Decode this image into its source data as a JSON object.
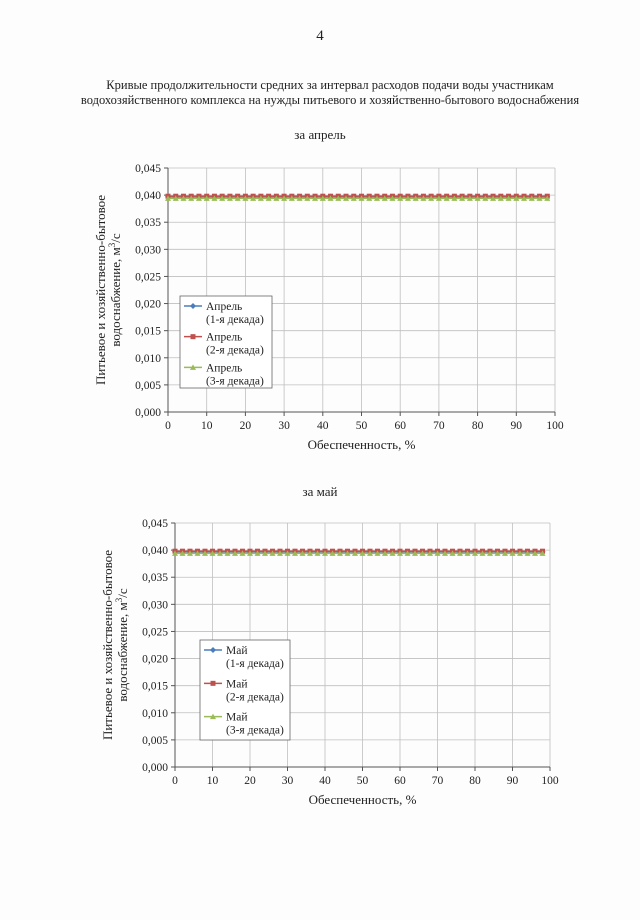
{
  "page_number": "4",
  "title_lines": [
    "Кривые продолжительности средних за интервал расходов подачи воды участникам",
    "водохозяйственного комплекса на нужды питьевого и хозяйственно-бытового водоснабжения"
  ],
  "chart_data": [
    {
      "type": "line",
      "title": "за апрель",
      "xlabel": "Обеспеченность, %",
      "ylabel_line1": "Питьевое и хозяйственно-бытовое",
      "ylabel_line2": "водоснабжение, м",
      "ylabel_sup": "3",
      "ylabel_suffix": "/с",
      "xlim": [
        0,
        100
      ],
      "ylim": [
        0,
        0.045
      ],
      "x_ticks": [
        "0",
        "10",
        "20",
        "30",
        "40",
        "50",
        "60",
        "70",
        "80",
        "90",
        "100"
      ],
      "y_ticks": [
        "0,000",
        "0,005",
        "0,010",
        "0,015",
        "0,020",
        "0,025",
        "0,030",
        "0,035",
        "0,040",
        "0,045"
      ],
      "grid": true,
      "legend_position": "lower-left",
      "x": [
        0,
        2,
        4,
        6,
        8,
        10,
        12,
        14,
        16,
        18,
        20,
        22,
        24,
        26,
        28,
        30,
        32,
        34,
        36,
        38,
        40,
        42,
        44,
        46,
        48,
        50,
        52,
        54,
        56,
        58,
        60,
        62,
        64,
        66,
        68,
        70,
        72,
        74,
        76,
        78,
        80,
        82,
        84,
        86,
        88,
        90,
        92,
        94,
        96,
        98
      ],
      "series": [
        {
          "name_line1": "Апрель",
          "name_line2": "(1-я декада)",
          "color": "#4a7ebb",
          "marker": "diamond",
          "value": 0.0397
        },
        {
          "name_line1": "Апрель",
          "name_line2": "(2-я декада)",
          "color": "#c0504d",
          "marker": "square",
          "value": 0.0398
        },
        {
          "name_line1": "Апрель",
          "name_line2": "(3-я декада)",
          "color": "#9bbb59",
          "marker": "triangle",
          "value": 0.0394
        }
      ]
    },
    {
      "type": "line",
      "title": "за май",
      "xlabel": "Обеспеченность, %",
      "ylabel_line1": "Питьевое и хозяйственно-бытовое",
      "ylabel_line2": "водоснабжение, м",
      "ylabel_sup": "3",
      "ylabel_suffix": "/с",
      "xlim": [
        0,
        100
      ],
      "ylim": [
        0,
        0.045
      ],
      "x_ticks": [
        "0",
        "10",
        "20",
        "30",
        "40",
        "50",
        "60",
        "70",
        "80",
        "90",
        "100"
      ],
      "y_ticks": [
        "0,000",
        "0,005",
        "0,010",
        "0,015",
        "0,020",
        "0,025",
        "0,030",
        "0,035",
        "0,040",
        "0,045"
      ],
      "grid": true,
      "legend_position": "lower-left",
      "x": [
        0,
        2,
        4,
        6,
        8,
        10,
        12,
        14,
        16,
        18,
        20,
        22,
        24,
        26,
        28,
        30,
        32,
        34,
        36,
        38,
        40,
        42,
        44,
        46,
        48,
        50,
        52,
        54,
        56,
        58,
        60,
        62,
        64,
        66,
        68,
        70,
        72,
        74,
        76,
        78,
        80,
        82,
        84,
        86,
        88,
        90,
        92,
        94,
        96,
        98
      ],
      "series": [
        {
          "name_line1": "Май",
          "name_line2": "(1-я декада)",
          "color": "#4a7ebb",
          "marker": "diamond",
          "value": 0.0397
        },
        {
          "name_line1": "Май",
          "name_line2": "(2-я декада)",
          "color": "#c0504d",
          "marker": "square",
          "value": 0.0398
        },
        {
          "name_line1": "Май",
          "name_line2": "(3-я декада)",
          "color": "#9bbb59",
          "marker": "triangle",
          "value": 0.0394
        }
      ]
    }
  ]
}
